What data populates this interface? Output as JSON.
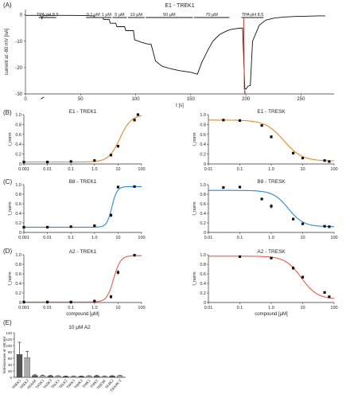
{
  "panel_letters": [
    "(A)",
    "(B)",
    "(C)",
    "(D)",
    "(E)"
  ],
  "chart_data": [
    {
      "id": "A",
      "type": "line",
      "title": "E1 - TREK1",
      "xlabel": "t [s]",
      "ylabel": "current at -80 mV [nA]",
      "xlim": [
        0,
        280
      ],
      "ylim": [
        -30,
        2
      ],
      "xticks": [
        0,
        50,
        100,
        150,
        200,
        250
      ],
      "yticks": [
        0,
        -10,
        -20,
        -30
      ],
      "annotations": [
        "TPA pH 8.5",
        "0.1 µM",
        "1 µM",
        "5 µM",
        "10 µM",
        "50 µM",
        "70 µM",
        "TPA pH 8.5"
      ],
      "series": [
        {
          "x": [
            0,
            14,
            15,
            16,
            22,
            24,
            25,
            40,
            55,
            62,
            63,
            70,
            71,
            76,
            77,
            82,
            83,
            90,
            91,
            98,
            99,
            106,
            110,
            114,
            118,
            124,
            132,
            140,
            150,
            156,
            160,
            166,
            170,
            176,
            182,
            186,
            190,
            194,
            197,
            199,
            200,
            202,
            204,
            206,
            212,
            218,
            226,
            236,
            246,
            256,
            266,
            272
          ],
          "y": [
            -0.2,
            -0.2,
            -1.5,
            -0.3,
            -0.2,
            -0.3,
            -0.2,
            -0.2,
            -0.3,
            -0.4,
            -1.0,
            -1.0,
            -1.8,
            -1.8,
            -3.2,
            -3.2,
            -4.5,
            -4.5,
            -6.0,
            -6.0,
            -9.5,
            -10.5,
            -11.0,
            -11.2,
            -17.5,
            -19.5,
            -20.5,
            -21.2,
            -21.8,
            -22.5,
            -18.0,
            -13.0,
            -10.0,
            -7.5,
            -6.2,
            -5.6,
            -5.3,
            -5.1,
            -5.0,
            -28.0,
            -28.2,
            -27.0,
            -26.8,
            -10.0,
            -4.0,
            -2.0,
            -1.2,
            -0.8,
            -0.6,
            -0.5,
            -0.4,
            -0.4
          ]
        },
        {
          "x": [
            14,
            15,
            16,
            17
          ],
          "y": [
            -32.0,
            -31.6,
            -31.4,
            -31.2
          ]
        },
        {
          "x": [
            198,
            198.5,
            199,
            199.5
          ],
          "y": [
            -1.0,
            -28.0,
            -30.0,
            -29.0
          ]
        }
      ]
    },
    {
      "id": "B1",
      "type": "scatter",
      "title": "E1 - TREK1",
      "xlabel": "",
      "ylabel": "I_norm",
      "xscale": "log",
      "xlim": [
        0.001,
        100
      ],
      "ylim": [
        0,
        1
      ],
      "xticks": [
        "0.001",
        "0.01",
        "0.1",
        "1.0",
        "10",
        "100"
      ],
      "yticks": [
        "0",
        "0.2",
        "0.4",
        "0.6",
        "0.8",
        "1.0"
      ],
      "color": "#e48a2a",
      "fit": {
        "bottom": 0.04,
        "top": 1.0,
        "ec50": 12,
        "hill": 1.8
      },
      "points": [
        {
          "x": 0.001,
          "y": 0.04,
          "err": 0.01
        },
        {
          "x": 0.01,
          "y": 0.04,
          "err": 0.01
        },
        {
          "x": 0.1,
          "y": 0.05,
          "err": 0.01
        },
        {
          "x": 1,
          "y": 0.07,
          "err": 0.01
        },
        {
          "x": 5,
          "y": 0.18,
          "err": 0.02
        },
        {
          "x": 10,
          "y": 0.36,
          "err": 0.03
        },
        {
          "x": 50,
          "y": 0.89,
          "err": 0.03
        },
        {
          "x": 70,
          "y": 1.0,
          "err": 0.02
        }
      ]
    },
    {
      "id": "B2",
      "type": "scatter",
      "title": "E1 - TRESK",
      "xlabel": "",
      "ylabel": "I_norm",
      "xscale": "log",
      "xlim": [
        0.01,
        100
      ],
      "ylim": [
        0,
        1
      ],
      "xticks": [
        "0.01",
        "0.1",
        "1.0",
        "10",
        "100"
      ],
      "yticks": [
        "0",
        "0.2",
        "0.4",
        "0.6",
        "0.8",
        "1.0"
      ],
      "color": "#e48a2a",
      "fit": {
        "bottom": 0.06,
        "top": 0.89,
        "ec50": 2.5,
        "hill": -1.5
      },
      "points": [
        {
          "x": 0.03,
          "y": 0.89,
          "err": 0.01
        },
        {
          "x": 0.1,
          "y": 0.88,
          "err": 0.02
        },
        {
          "x": 0.5,
          "y": 0.78,
          "err": 0.02
        },
        {
          "x": 1,
          "y": 0.55,
          "err": 0.03
        },
        {
          "x": 5,
          "y": 0.22,
          "err": 0.02
        },
        {
          "x": 10,
          "y": 0.12,
          "err": 0.02
        },
        {
          "x": 50,
          "y": 0.07,
          "err": 0.01
        },
        {
          "x": 70,
          "y": 0.05,
          "err": 0.01
        }
      ]
    },
    {
      "id": "C1",
      "type": "scatter",
      "title": "B8 - TREK1",
      "xlabel": "",
      "ylabel": "I_norm",
      "xscale": "log",
      "xlim": [
        0.001,
        100
      ],
      "ylim": [
        0,
        1
      ],
      "xticks": [
        "0.001",
        "0.01",
        "0.1",
        "1.0",
        "10",
        "100"
      ],
      "yticks": [
        "0",
        "0.2",
        "0.4",
        "0.6",
        "0.8",
        "1.0"
      ],
      "color": "#2b8bd0",
      "fit": {
        "bottom": 0.11,
        "top": 0.96,
        "ec50": 5.5,
        "hill": 4
      },
      "points": [
        {
          "x": 0.001,
          "y": 0.11,
          "err": 0.01
        },
        {
          "x": 0.01,
          "y": 0.11,
          "err": 0.01
        },
        {
          "x": 0.1,
          "y": 0.12,
          "err": 0.01
        },
        {
          "x": 1,
          "y": 0.14,
          "err": 0.02
        },
        {
          "x": 5,
          "y": 0.36,
          "err": 0.04
        },
        {
          "x": 10,
          "y": 0.95,
          "err": 0.02
        },
        {
          "x": 50,
          "y": 0.96,
          "err": 0.01
        }
      ]
    },
    {
      "id": "C2",
      "type": "scatter",
      "title": "B8 - TRESK",
      "xlabel": "",
      "ylabel": "I_norm",
      "xscale": "log",
      "xlim": [
        0.01,
        100
      ],
      "ylim": [
        0,
        1
      ],
      "xticks": [
        "0.01",
        "0.1",
        "1.0",
        "10",
        "100"
      ],
      "yticks": [
        "0",
        "0.2",
        "0.4",
        "0.6",
        "0.8",
        "1.0"
      ],
      "color": "#2b8bd0",
      "fit": {
        "bottom": 0.12,
        "top": 0.88,
        "ec50": 3.5,
        "hill": -1.8
      },
      "points": [
        {
          "x": 0.03,
          "y": 0.94,
          "err": 0.01
        },
        {
          "x": 0.1,
          "y": 0.95,
          "err": 0.01
        },
        {
          "x": 0.5,
          "y": 0.7,
          "err": 0.02
        },
        {
          "x": 1,
          "y": 0.55,
          "err": 0.05
        },
        {
          "x": 5,
          "y": 0.28,
          "err": 0.02
        },
        {
          "x": 10,
          "y": 0.18,
          "err": 0.02
        },
        {
          "x": 50,
          "y": 0.13,
          "err": 0.01
        },
        {
          "x": 70,
          "y": 0.12,
          "err": 0.01
        }
      ]
    },
    {
      "id": "D1",
      "type": "scatter",
      "title": "A2 - TREK1",
      "xlabel": "compound [µM]",
      "ylabel": "I_norm",
      "xscale": "log",
      "xlim": [
        0.001,
        100
      ],
      "ylim": [
        0,
        1
      ],
      "xticks": [
        "0.001",
        "0.01",
        "0.1",
        "1.0",
        "10",
        "100"
      ],
      "yticks": [
        "0",
        "0.2",
        "0.4",
        "0.6",
        "0.8",
        "1.0"
      ],
      "color": "#e35d4a",
      "fit": {
        "bottom": 0.01,
        "top": 0.98,
        "ec50": 6.5,
        "hill": 3
      },
      "points": [
        {
          "x": 0.001,
          "y": 0.01,
          "err": 0.01
        },
        {
          "x": 0.01,
          "y": 0.01,
          "err": 0.01
        },
        {
          "x": 0.1,
          "y": 0.01,
          "err": 0.01
        },
        {
          "x": 1,
          "y": 0.03,
          "err": 0.01
        },
        {
          "x": 5,
          "y": 0.12,
          "err": 0.04
        },
        {
          "x": 10,
          "y": 0.63,
          "err": 0.05
        },
        {
          "x": 50,
          "y": 0.99,
          "err": 0.01
        }
      ]
    },
    {
      "id": "D2",
      "type": "scatter",
      "title": "A2 - TRESK",
      "xlabel": "compound [µM]",
      "ylabel": "I_norm",
      "xscale": "log",
      "xlim": [
        0.01,
        100
      ],
      "ylim": [
        0,
        1
      ],
      "xticks": [
        "0.01",
        "0.1",
        "1.0",
        "10",
        "100"
      ],
      "yticks": [
        "0",
        "0.2",
        "0.4",
        "0.6",
        "0.8",
        "1.0"
      ],
      "color": "#e35d4a",
      "fit": {
        "bottom": 0.07,
        "top": 0.97,
        "ec50": 9,
        "hill": -1.7
      },
      "points": [
        {
          "x": 0.1,
          "y": 0.96,
          "err": 0.01
        },
        {
          "x": 1,
          "y": 0.93,
          "err": 0.02
        },
        {
          "x": 5,
          "y": 0.72,
          "err": 0.04
        },
        {
          "x": 10,
          "y": 0.53,
          "err": 0.03
        },
        {
          "x": 50,
          "y": 0.21,
          "err": 0.02
        },
        {
          "x": 70,
          "y": 0.12,
          "err": 0.01
        }
      ]
    },
    {
      "id": "E",
      "type": "bar",
      "title": "10 µM A2",
      "xlabel": "",
      "ylabel": "fold-increase at -80 mV",
      "ylim": [
        0,
        140
      ],
      "yticks": [
        0,
        20,
        40,
        60,
        80,
        100,
        120,
        140
      ],
      "categories": [
        "TREK1",
        "TREK2",
        "TRAAK",
        "TASK1",
        "TASK3",
        "TALK1",
        "TALK2",
        "TWIK1",
        "TWIK2",
        "THIK1",
        "THIK2",
        "TRESK",
        "TASK2",
        "TRAAK-2"
      ],
      "values": [
        72,
        62,
        6,
        5,
        4,
        4,
        3,
        3,
        3,
        4,
        4,
        3,
        4,
        5
      ],
      "errors": [
        38,
        20,
        2,
        2,
        2,
        1,
        1,
        1,
        1,
        1,
        2,
        1,
        1,
        1
      ],
      "colors": [
        "#555555",
        "#aaaaaa",
        "#555555",
        "#aaaaaa",
        "#555555",
        "#aaaaaa",
        "#555555",
        "#aaaaaa",
        "#555555",
        "#aaaaaa",
        "#555555",
        "#aaaaaa",
        "#555555",
        "#aaaaaa"
      ]
    }
  ]
}
